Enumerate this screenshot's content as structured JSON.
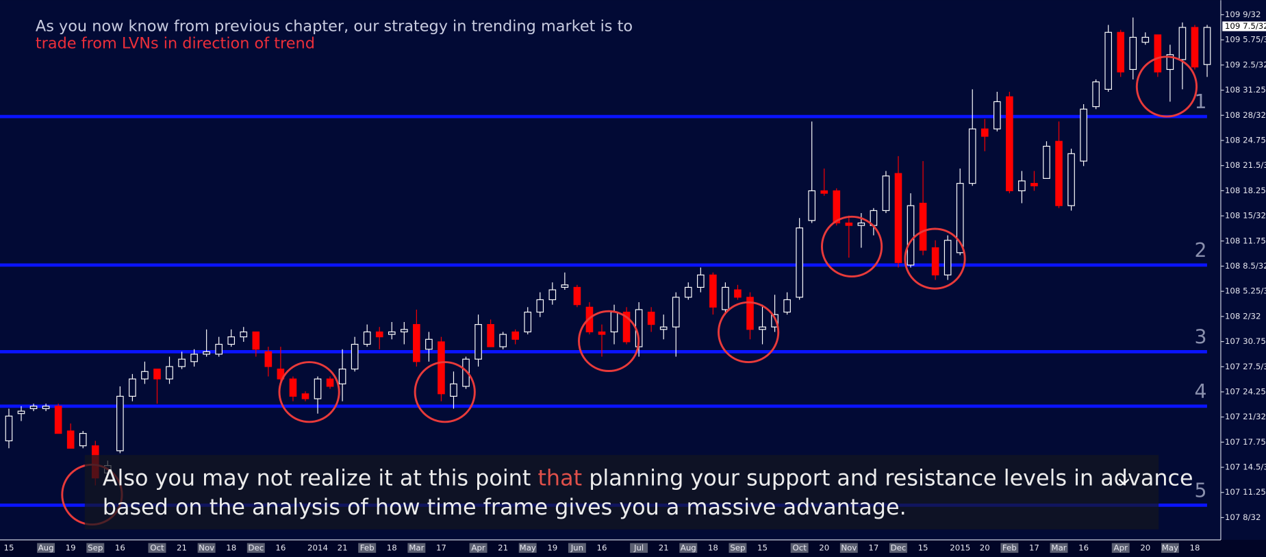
{
  "chart_data": {
    "type": "candlestick",
    "title_lines": [
      "As you now know from previous chapter, our strategy in trending market is to",
      "trade from LVNs in direction of trend"
    ],
    "categories": [
      "15",
      null,
      null,
      "Aug",
      null,
      "19",
      null,
      "Sep",
      null,
      "16",
      null,
      null,
      "Oct",
      null,
      "21",
      null,
      "Nov",
      null,
      "18",
      null,
      "Dec",
      null,
      "16",
      null,
      null,
      "2014",
      null,
      "21",
      null,
      "Feb",
      null,
      "18",
      null,
      "Mar",
      null,
      "17",
      null,
      null,
      "Apr",
      null,
      "21",
      null,
      "May",
      null,
      "19",
      null,
      "Jun",
      null,
      "16",
      null,
      null,
      "Jul",
      null,
      "21",
      null,
      "Aug",
      null,
      "18",
      null,
      "Sep",
      null,
      "15",
      null,
      null,
      "Oct",
      null,
      "20",
      null,
      "Nov",
      null,
      "17",
      null,
      "Dec",
      null,
      "15",
      null,
      null,
      "2015",
      null,
      "20",
      null,
      "Feb",
      null,
      "17",
      null,
      "Mar",
      null,
      "16",
      null,
      null,
      "Apr",
      null,
      "20",
      null,
      "May",
      null,
      "18",
      null
    ],
    "open": [
      107.56,
      107.67,
      107.69,
      107.69,
      107.7,
      107.6,
      107.54,
      107.54,
      107.43,
      107.52,
      107.74,
      107.81,
      107.85,
      107.81,
      107.86,
      107.88,
      107.91,
      107.91,
      107.95,
      107.98,
      108.0,
      107.92,
      107.85,
      107.81,
      107.75,
      107.73,
      107.81,
      107.79,
      107.85,
      107.95,
      108.0,
      107.99,
      108.0,
      108.03,
      107.93,
      107.96,
      107.74,
      107.78,
      107.89,
      108.03,
      107.94,
      108.0,
      108.0,
      108.08,
      108.13,
      108.18,
      108.18,
      108.1,
      108.0,
      108.0,
      108.08,
      107.94,
      108.08,
      108.01,
      108.02,
      108.14,
      108.18,
      108.23,
      108.09,
      108.17,
      108.14,
      108.01,
      108.02,
      108.08,
      108.14,
      108.45,
      108.57,
      108.57,
      108.44,
      108.43,
      108.43,
      108.49,
      108.64,
      108.27,
      108.52,
      108.34,
      108.23,
      108.32,
      108.6,
      108.82,
      108.82,
      108.95,
      108.57,
      108.6,
      108.62,
      108.77,
      108.51,
      108.69,
      108.91,
      108.98,
      109.21,
      109.06,
      109.17,
      109.2,
      109.06,
      109.1,
      109.23,
      109.08
    ],
    "high": [
      107.69,
      107.7,
      107.71,
      107.71,
      107.71,
      107.63,
      107.6,
      107.56,
      107.48,
      107.78,
      107.83,
      107.88,
      107.85,
      107.9,
      107.92,
      107.93,
      108.01,
      107.98,
      108.01,
      108.02,
      108.0,
      107.94,
      107.94,
      107.82,
      107.76,
      107.82,
      107.82,
      107.93,
      107.98,
      108.03,
      108.02,
      108.04,
      108.04,
      108.09,
      108.0,
      107.98,
      107.84,
      107.9,
      108.07,
      108.05,
      108.0,
      108.01,
      108.1,
      108.16,
      108.2,
      108.24,
      108.19,
      108.12,
      108.03,
      108.11,
      108.1,
      108.12,
      108.1,
      108.07,
      108.16,
      108.2,
      108.26,
      108.24,
      108.2,
      108.19,
      108.16,
      108.11,
      108.15,
      108.16,
      108.46,
      108.85,
      108.66,
      108.58,
      108.47,
      108.48,
      108.5,
      108.65,
      108.71,
      108.56,
      108.69,
      108.37,
      108.39,
      108.66,
      108.98,
      108.86,
      108.97,
      108.97,
      108.65,
      108.65,
      108.77,
      108.85,
      108.74,
      108.92,
      109.02,
      109.24,
      109.22,
      109.27,
      109.21,
      109.2,
      109.16,
      109.25,
      109.24,
      109.24
    ],
    "low": [
      107.53,
      107.64,
      107.68,
      107.68,
      107.59,
      107.53,
      107.53,
      107.38,
      107.41,
      107.51,
      107.72,
      107.79,
      107.71,
      107.79,
      107.85,
      107.86,
      107.9,
      107.9,
      107.94,
      107.96,
      107.9,
      107.82,
      107.79,
      107.72,
      107.72,
      107.67,
      107.77,
      107.72,
      107.84,
      107.94,
      107.93,
      107.97,
      107.95,
      107.86,
      107.88,
      107.72,
      107.69,
      107.77,
      107.86,
      107.94,
      107.93,
      107.95,
      107.99,
      108.06,
      108.11,
      108.17,
      108.1,
      107.99,
      107.9,
      107.95,
      107.95,
      107.9,
      108.0,
      107.97,
      107.9,
      108.13,
      108.16,
      108.07,
      108.07,
      108.13,
      107.97,
      107.95,
      108.0,
      108.07,
      108.13,
      108.44,
      108.55,
      108.43,
      108.3,
      108.34,
      108.39,
      108.48,
      108.26,
      108.26,
      108.31,
      108.21,
      108.21,
      108.31,
      108.59,
      108.73,
      108.81,
      108.56,
      108.52,
      108.57,
      108.62,
      108.5,
      108.49,
      108.67,
      108.9,
      108.97,
      109.03,
      109.02,
      109.16,
      109.03,
      108.93,
      108.98,
      109.06,
      109.03
    ],
    "close": [
      107.66,
      107.68,
      107.7,
      107.7,
      107.59,
      107.53,
      107.59,
      107.41,
      107.46,
      107.74,
      107.81,
      107.84,
      107.81,
      107.86,
      107.89,
      107.91,
      107.92,
      107.95,
      107.98,
      108.0,
      107.93,
      107.86,
      107.81,
      107.74,
      107.73,
      107.81,
      107.78,
      107.85,
      107.95,
      108.0,
      107.98,
      108.0,
      108.01,
      107.88,
      107.97,
      107.75,
      107.79,
      107.89,
      108.03,
      107.94,
      107.99,
      107.97,
      108.08,
      108.13,
      108.17,
      108.19,
      108.11,
      108.0,
      107.99,
      108.08,
      107.96,
      108.09,
      108.03,
      108.02,
      108.14,
      108.18,
      108.23,
      108.1,
      108.18,
      108.14,
      108.01,
      108.02,
      108.07,
      108.13,
      108.42,
      108.57,
      108.56,
      108.44,
      108.43,
      108.44,
      108.49,
      108.63,
      108.28,
      108.51,
      108.33,
      108.23,
      108.37,
      108.6,
      108.82,
      108.79,
      108.93,
      108.57,
      108.61,
      108.59,
      108.75,
      108.51,
      108.72,
      108.9,
      109.01,
      109.21,
      109.05,
      109.19,
      109.19,
      109.05,
      109.12,
      109.23,
      109.07,
      109.23
    ],
    "up_color": "#ffffff",
    "down_color": "#ff0000",
    "ylim": [
      107.16,
      109.34
    ],
    "yticks": [
      {
        "value": 109.28125,
        "label": "109 9/32"
      },
      {
        "value": 109.1796875,
        "label": "109 5.75/32"
      },
      {
        "value": 109.078125,
        "label": "109 2.5/32"
      },
      {
        "value": 108.9765625,
        "label": "108 31.25/32"
      },
      {
        "value": 108.875,
        "label": "108 28/32"
      },
      {
        "value": 108.7734375,
        "label": "108 24.75/32"
      },
      {
        "value": 108.671875,
        "label": "108 21.5/32"
      },
      {
        "value": 108.5703125,
        "label": "108 18.25/32"
      },
      {
        "value": 108.46875,
        "label": "108 15/32"
      },
      {
        "value": 108.3671875,
        "label": "108 11.75/32"
      },
      {
        "value": 108.265625,
        "label": "108 8.5/32"
      },
      {
        "value": 108.1640625,
        "label": "108 5.25/32"
      },
      {
        "value": 108.0625,
        "label": "108 2/32"
      },
      {
        "value": 107.9609375,
        "label": "107 30.75/32"
      },
      {
        "value": 107.859375,
        "label": "107 27.5/32"
      },
      {
        "value": 107.7578125,
        "label": "107 24.25/32"
      },
      {
        "value": 107.65625,
        "label": "107 21/32"
      },
      {
        "value": 107.5546875,
        "label": "107 17.75/32"
      },
      {
        "value": 107.453125,
        "label": "107 14.5/32"
      },
      {
        "value": 107.3515625,
        "label": "107 11.25/32"
      },
      {
        "value": 107.25,
        "label": "107 8/32"
      }
    ],
    "last_price": {
      "value": 109.234375,
      "label": "109 7.5/32"
    },
    "levels": [
      {
        "value": 108.87,
        "label": "1"
      },
      {
        "value": 108.27,
        "label": "2"
      },
      {
        "value": 107.92,
        "label": "3"
      },
      {
        "value": 107.7,
        "label": "4"
      },
      {
        "value": 107.3,
        "label": "5"
      }
    ],
    "level_color": "#0a14ff"
  },
  "caption": {
    "parts": [
      "Also you may not realize it at this point ",
      "that",
      " planning your support and resistance levels in advance"
    ],
    "line2": "based on the analysis of how time frame gives you a massive advantage."
  }
}
